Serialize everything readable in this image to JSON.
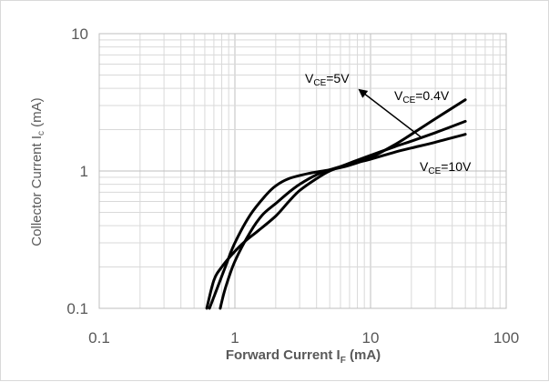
{
  "chart_data": {
    "type": "line",
    "title": "",
    "xscale": "log",
    "yscale": "log",
    "xlim": [
      0.1,
      100
    ],
    "ylim": [
      0.1,
      10
    ],
    "grid": true,
    "xlabel": {
      "main": "Forward Current I",
      "sub": "F",
      "unit": " (mA)"
    },
    "ylabel": {
      "main": "Collector Current I",
      "sub": "c",
      "unit": " (mA)"
    },
    "x_ticks": [
      "0.1",
      "1",
      "10",
      "100"
    ],
    "y_ticks": [
      "0.1",
      "1",
      "10"
    ],
    "series": [
      {
        "name": "VCE=5V",
        "label": {
          "v": "V",
          "sub": "CE",
          "rest": "=5V"
        },
        "x": [
          0.65,
          0.72,
          0.85,
          1.0,
          1.3,
          1.7,
          2.0,
          2.5,
          3.5,
          5.0,
          7.0,
          10,
          15,
          20,
          30,
          50
        ],
        "y": [
          0.1,
          0.13,
          0.2,
          0.3,
          0.48,
          0.67,
          0.78,
          0.88,
          0.96,
          1.02,
          1.1,
          1.25,
          1.55,
          1.85,
          2.4,
          3.3
        ]
      },
      {
        "name": "VCE=0.4V",
        "label": {
          "v": "V",
          "sub": "CE",
          "rest": "=0.4V"
        },
        "x": [
          0.62,
          0.7,
          0.8,
          1.0,
          1.2,
          1.5,
          2.0,
          2.5,
          3.0,
          4.0,
          5.0,
          7.0,
          10,
          15,
          20,
          30,
          50
        ],
        "y": [
          0.1,
          0.16,
          0.2,
          0.26,
          0.31,
          0.37,
          0.47,
          0.6,
          0.72,
          0.88,
          1.0,
          1.14,
          1.3,
          1.5,
          1.65,
          1.9,
          2.3
        ]
      },
      {
        "name": "VCE=10V",
        "label": {
          "v": "V",
          "sub": "CE",
          "rest": "=10V"
        },
        "x": [
          0.78,
          0.85,
          1.0,
          1.3,
          1.6,
          2.0,
          2.5,
          3.0,
          4.0,
          5.0,
          7.0,
          10,
          15,
          20,
          30,
          50
        ],
        "y": [
          0.1,
          0.14,
          0.22,
          0.36,
          0.48,
          0.58,
          0.7,
          0.8,
          0.94,
          1.02,
          1.12,
          1.22,
          1.37,
          1.47,
          1.62,
          1.85
        ]
      }
    ],
    "annotation": "arrow indicating increasing VCE"
  },
  "colors": {
    "curve": "#000000",
    "grid_major": "#bfbfbf",
    "grid_minor": "#d9d9d9",
    "text": "#595959",
    "frame": "#d9d9d9"
  }
}
